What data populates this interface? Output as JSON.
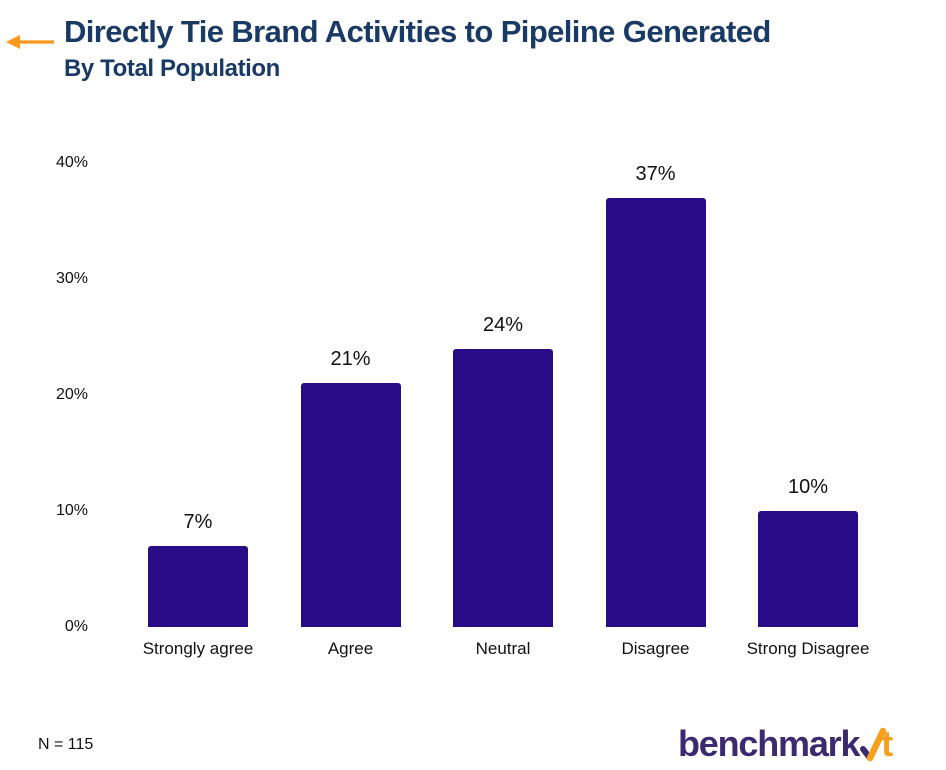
{
  "header": {
    "title": "Directly Tie Brand Activities to Pipeline Generated",
    "subtitle": "By Total Population",
    "arrow_color": "#F8991D",
    "title_color": "#1A3A66"
  },
  "chart_data": {
    "type": "bar",
    "title": "Directly Tie Brand Activities to Pipeline Generated",
    "subtitle": "By Total Population",
    "categories": [
      "Strongly agree",
      "Agree",
      "Neutral",
      "Disagree",
      "Strong Disagree"
    ],
    "values": [
      7,
      21,
      24,
      37,
      10
    ],
    "value_labels": [
      "7%",
      "21%",
      "24%",
      "37%",
      "10%"
    ],
    "xlabel": "",
    "ylabel": "",
    "ylim": [
      0,
      40
    ],
    "y_ticks": [
      0,
      10,
      20,
      30,
      40
    ],
    "y_tick_labels": [
      "0%",
      "10%",
      "20%",
      "30%",
      "40%"
    ],
    "grid": false,
    "legend_position": "none",
    "bar_color": "#2A0B87",
    "label_color": "#111111"
  },
  "footer": {
    "sample_size": "N = 115",
    "logo": {
      "text_main": "benchmark",
      "check_icon": "check-icon",
      "text_accent": "t",
      "main_color": "#3B2A70",
      "accent_color": "#F6A01B"
    }
  }
}
